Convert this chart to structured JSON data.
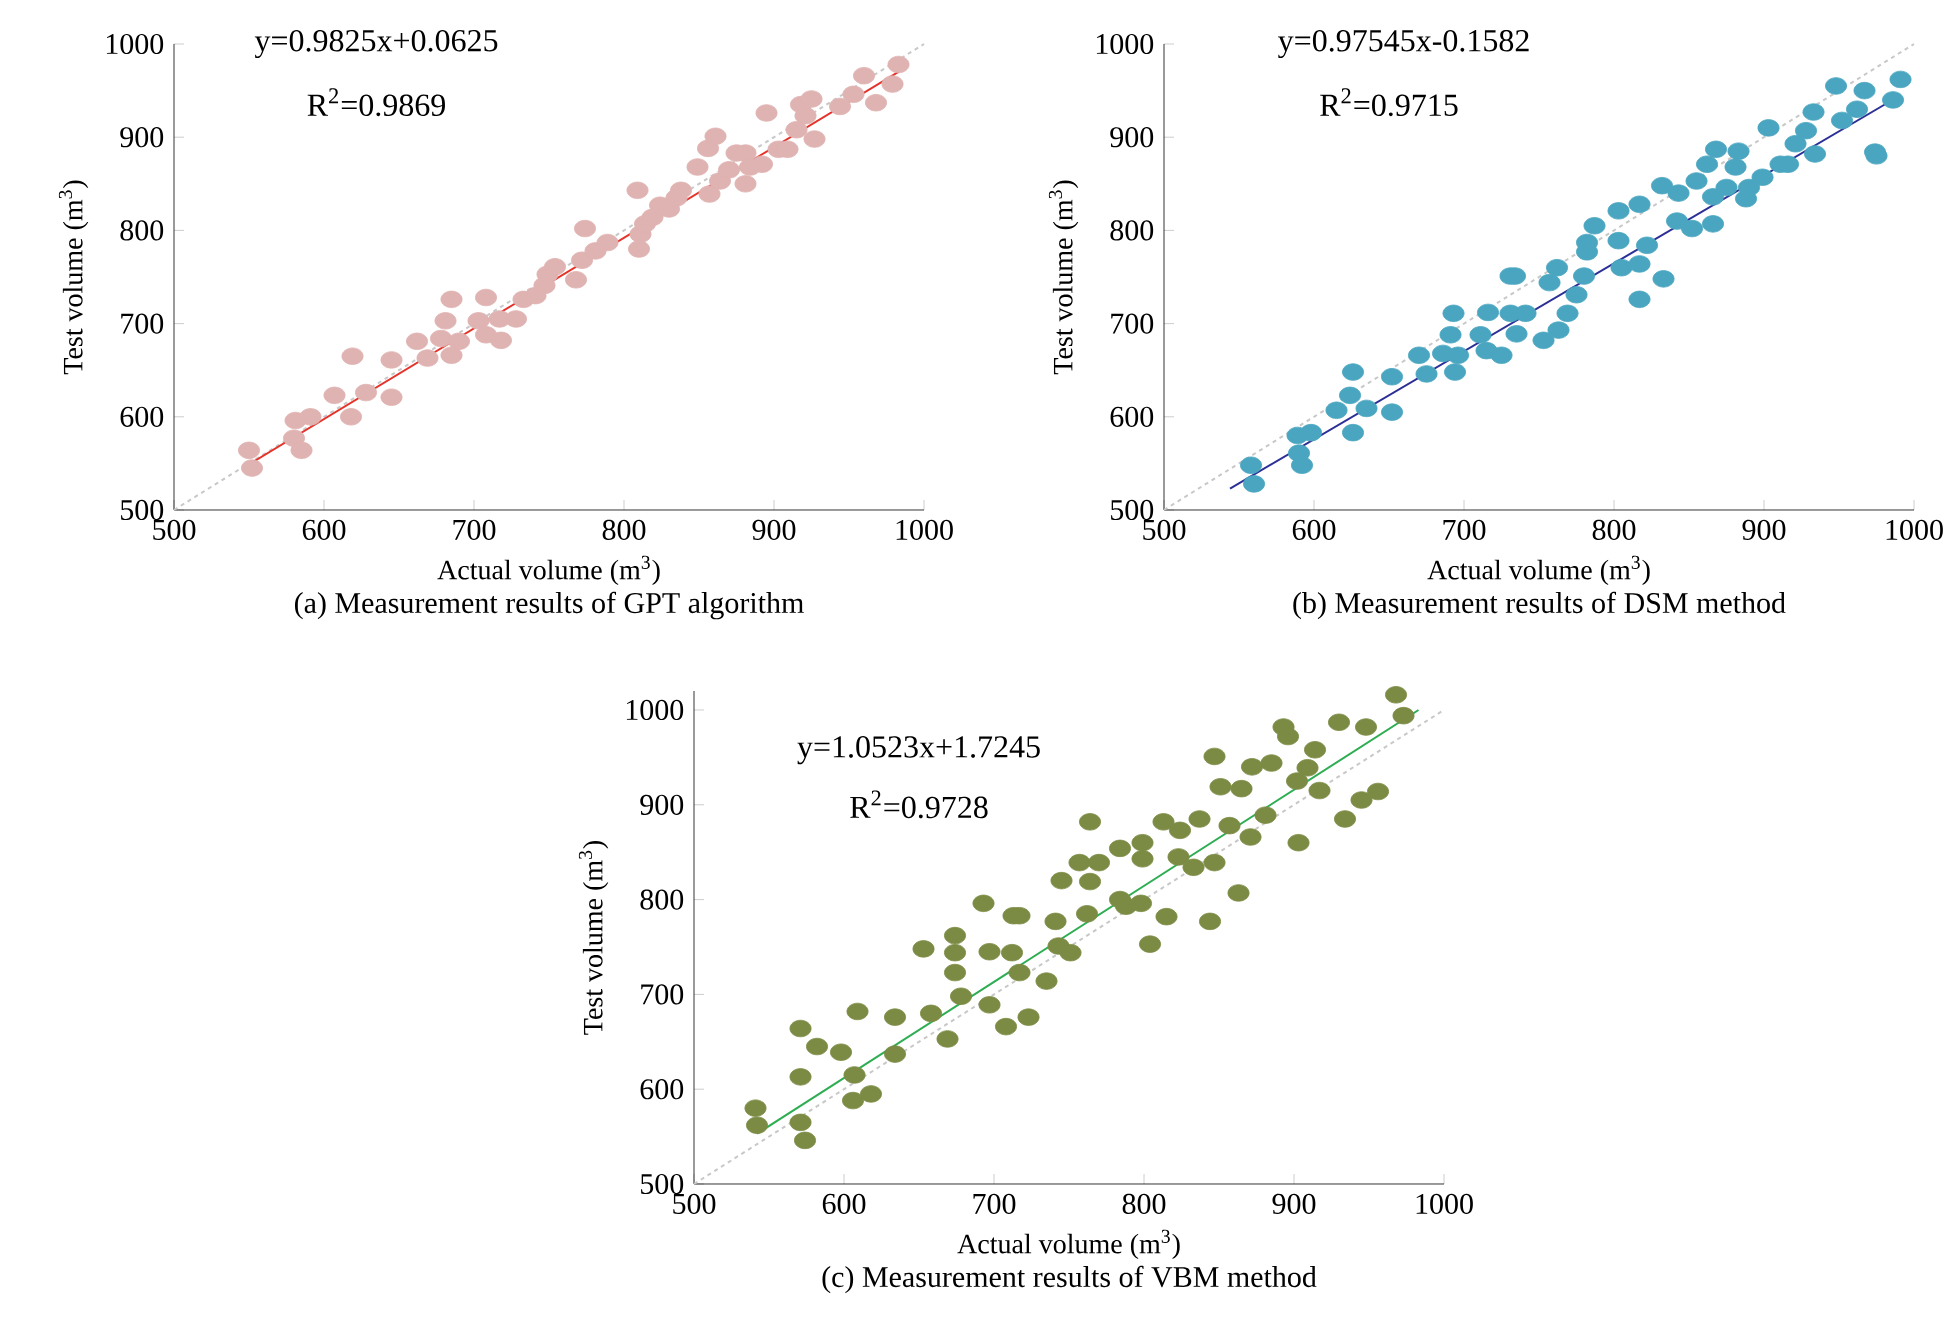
{
  "chart_data": [
    {
      "type": "scatter",
      "title": "(a) Measurement results of GPT algorithm",
      "xlabel": "Actual volume (m$^{3}$)",
      "ylabel": "Test volume (m$^{3}$)",
      "xlim": [
        500,
        1000
      ],
      "ylim": [
        500,
        1000
      ],
      "xticks": [
        500,
        600,
        700,
        800,
        900,
        1000
      ],
      "yticks": [
        500,
        600,
        700,
        800,
        900,
        1000
      ],
      "marker": "circle",
      "annotations": [
        "y=0.9825x+0.0625",
        "R$^{2}$=0.9869"
      ],
      "series": [
        {
          "type": "line",
          "color": "#c8c8c8",
          "line_style": "dashed",
          "marker": "none",
          "x": [
            500,
            1000
          ],
          "values": [
            500,
            1000
          ]
        },
        {
          "color": "#dfb3b1",
          "x": [
            550,
            552,
            580,
            581,
            585,
            591,
            607,
            618,
            619,
            628,
            645,
            645,
            662,
            669,
            678,
            681,
            685,
            685,
            690,
            703,
            708,
            708,
            717,
            718,
            728,
            733,
            741,
            747,
            749,
            754,
            768,
            772,
            774,
            781,
            789,
            809,
            810,
            811,
            814,
            819,
            824,
            830,
            835,
            838,
            849,
            856,
            861,
            857,
            864,
            870,
            875,
            881,
            881,
            884,
            892,
            895,
            903,
            909,
            915,
            918,
            925,
            921,
            927,
            944,
            953,
            960,
            968,
            979,
            983
          ],
          "values": [
            564,
            545,
            577,
            596,
            564,
            600,
            623,
            600,
            665,
            626,
            661,
            621,
            681,
            663,
            684,
            703,
            726,
            666,
            681,
            703,
            728,
            688,
            705,
            682,
            705,
            726,
            730,
            741,
            753,
            761,
            747,
            768,
            802,
            778,
            787,
            843,
            780,
            796,
            807,
            814,
            827,
            823,
            835,
            843,
            868,
            888,
            901,
            839,
            853,
            865,
            883,
            883,
            850,
            868,
            871,
            926,
            887,
            887,
            908,
            935,
            941,
            923,
            898,
            933,
            946,
            966,
            937,
            957,
            978
          ]
        },
        {
          "type": "line",
          "color": "#e5332a",
          "line_style": "solid",
          "marker": "none",
          "x": [
            546,
            986
          ],
          "values": [
            545,
            973
          ]
        }
      ]
    },
    {
      "type": "scatter",
      "title": "(b) Measurement results of DSM method",
      "xlabel": "Actual volume (m$^{3}$)",
      "ylabel": "Test volume (m$^{3}$)",
      "xlim": [
        500,
        1000
      ],
      "ylim": [
        500,
        1000
      ],
      "xticks": [
        500,
        600,
        700,
        800,
        900,
        1000
      ],
      "yticks": [
        500,
        600,
        700,
        800,
        900,
        1000
      ],
      "marker": "circle",
      "annotations": [
        "y=0.97545x-0.1582",
        "R$^{2}$=0.9715"
      ],
      "series": [
        {
          "type": "line",
          "color": "#c8c8c8",
          "line_style": "dashed",
          "marker": "none",
          "x": [
            500,
            1000
          ],
          "values": [
            500,
            1000
          ]
        },
        {
          "color": "#4aa6c0",
          "x": [
            558,
            560,
            589,
            590,
            592,
            598,
            615,
            624,
            626,
            626,
            635,
            652,
            652,
            670,
            675,
            686,
            691,
            693,
            694,
            696,
            711,
            715,
            716,
            725,
            731,
            734,
            731,
            735,
            741,
            753,
            757,
            762,
            763,
            769,
            775,
            780,
            782,
            782,
            787,
            803,
            803,
            805,
            817,
            817,
            817,
            822,
            833,
            832,
            843,
            842,
            852,
            855,
            862,
            868,
            866,
            866,
            875,
            881,
            883,
            888,
            890,
            899,
            903,
            911,
            916,
            921,
            928,
            933,
            934,
            948,
            952,
            962,
            967,
            974,
            975,
            986,
            991
          ],
          "values": [
            548,
            528,
            580,
            561,
            548,
            583,
            607,
            623,
            648,
            583,
            609,
            643,
            605,
            666,
            646,
            668,
            688,
            711,
            648,
            666,
            688,
            671,
            712,
            666,
            751,
            751,
            711,
            689,
            711,
            682,
            744,
            760,
            693,
            711,
            731,
            751,
            777,
            787,
            805,
            821,
            789,
            760,
            828,
            764,
            726,
            784,
            748,
            848,
            840,
            810,
            802,
            853,
            871,
            887,
            836,
            807,
            846,
            868,
            885,
            834,
            846,
            857,
            910,
            871,
            871,
            893,
            907,
            927,
            882,
            955,
            918,
            930,
            950,
            884,
            880,
            940,
            962
          ]
        },
        {
          "type": "line",
          "color": "#2b2f96",
          "line_style": "solid",
          "marker": "none",
          "x": [
            544,
            991
          ],
          "values": [
            523,
            945
          ]
        }
      ]
    },
    {
      "type": "scatter",
      "title": "(c) Measurement results of VBM method",
      "xlabel": "Actual volume (m$^{3}$)",
      "ylabel": "Test volume (m$^{3}$)",
      "xlim": [
        500,
        1000
      ],
      "ylim": [
        500,
        1020
      ],
      "xticks": [
        500,
        600,
        700,
        800,
        900,
        1000
      ],
      "yticks": [
        500,
        600,
        700,
        800,
        900,
        1000
      ],
      "marker": "circle",
      "annotations": [
        "y=1.0523x+1.7245",
        "R$^{2}$=0.9728"
      ],
      "series": [
        {
          "type": "line",
          "color": "#c8c8c8",
          "line_style": "dashed",
          "marker": "none",
          "x": [
            500,
            1000
          ],
          "values": [
            500,
            1000
          ]
        },
        {
          "color": "#7b8b44",
          "x": [
            541,
            542,
            571,
            571,
            571,
            574,
            582,
            598,
            607,
            609,
            606,
            618,
            634,
            634,
            653,
            658,
            669,
            674,
            674,
            674,
            678,
            693,
            697,
            697,
            708,
            712,
            713,
            717,
            717,
            723,
            735,
            741,
            743,
            745,
            751,
            757,
            762,
            764,
            764,
            770,
            784,
            784,
            788,
            798,
            799,
            799,
            804,
            815,
            813,
            824,
            823,
            833,
            837,
            844,
            847,
            847,
            851,
            857,
            863,
            865,
            871,
            872,
            881,
            885,
            893,
            896,
            903,
            902,
            909,
            914,
            917,
            930,
            934,
            945,
            948,
            956,
            968,
            973
          ],
          "values": [
            580,
            562,
            664,
            613,
            565,
            546,
            645,
            639,
            615,
            682,
            588,
            595,
            676,
            637,
            748,
            680,
            653,
            723,
            762,
            744,
            698,
            796,
            745,
            689,
            666,
            744,
            783,
            783,
            723,
            676,
            714,
            777,
            751,
            820,
            744,
            839,
            785,
            882,
            819,
            839,
            854,
            800,
            793,
            796,
            860,
            843,
            753,
            782,
            882,
            873,
            845,
            834,
            885,
            777,
            951,
            839,
            919,
            878,
            807,
            917,
            866,
            940,
            889,
            944,
            982,
            972,
            860,
            925,
            939,
            958,
            915,
            987,
            885,
            905,
            982,
            914,
            1016,
            994
          ]
        },
        {
          "type": "line",
          "color": "#2ead52",
          "line_style": "solid",
          "marker": "none",
          "x": [
            542,
            983
          ],
          "values": [
            553,
            1000
          ]
        }
      ]
    }
  ]
}
